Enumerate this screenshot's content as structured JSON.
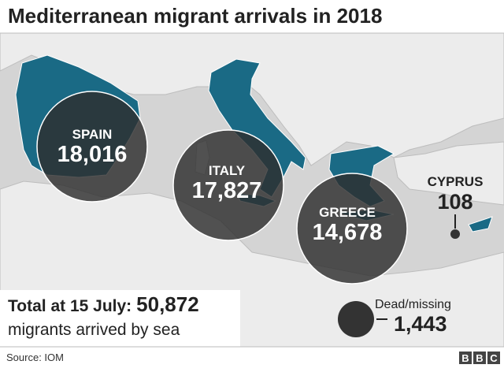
{
  "header": {
    "title": "Mediterranean migrant arrivals in 2018"
  },
  "countries": [
    {
      "name": "SPAIN",
      "value": "18,016"
    },
    {
      "name": "ITALY",
      "value": "17,827"
    },
    {
      "name": "GREECE",
      "value": "14,678"
    },
    {
      "name": "CYPRUS",
      "value": "108"
    }
  ],
  "total": {
    "label": "Total at 15 July:",
    "value": "50,872",
    "note": "migrants arrived by sea"
  },
  "dead_missing": {
    "label": "Dead/missing",
    "value": "1,443"
  },
  "footer": {
    "source": "Source: IOM",
    "logo": "BBC"
  }
}
